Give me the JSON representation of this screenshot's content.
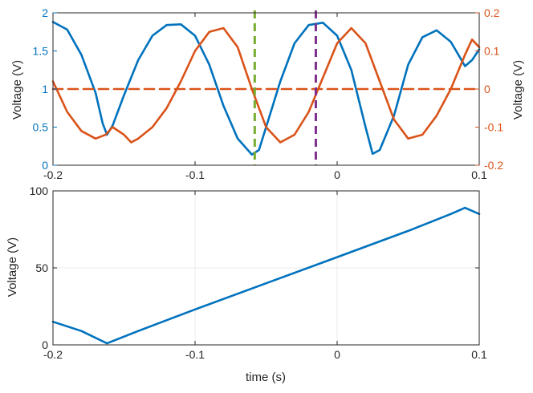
{
  "colors": {
    "blue": "#0072BD",
    "orange": "#D95319",
    "green": "#77AC30",
    "purple": "#7E2F8E",
    "axis": "#262626",
    "grid": "#ebebeb"
  },
  "chart_data": [
    {
      "type": "line",
      "title": "",
      "xlabel": "",
      "ylabel": "Voltage (V)",
      "ylabel_right": "Voltage (V)",
      "xlim": [
        -0.2,
        0.1
      ],
      "ylim": [
        0,
        2
      ],
      "ylim_right": [
        -0.2,
        0.2
      ],
      "xticks": [
        -0.2,
        -0.1,
        0,
        0.1
      ],
      "xtick_labels": [
        "-0.2",
        "-0.1",
        "0",
        "0.1"
      ],
      "yticks": [
        0,
        0.5,
        1,
        1.5,
        2
      ],
      "ytick_labels": [
        "0",
        "0.5",
        "1",
        "1.5",
        "2"
      ],
      "yticks_right": [
        -0.2,
        -0.1,
        0,
        0.1,
        0.2
      ],
      "ytick_labels_right": [
        "-0.2",
        "-0.1",
        "0",
        "0.1",
        "0.2"
      ],
      "grid": false,
      "series": [
        {
          "axis": "left",
          "color": "#0072BD",
          "style": "solid",
          "x": [
            -0.2,
            -0.19,
            -0.18,
            -0.17,
            -0.165,
            -0.162,
            -0.158,
            -0.15,
            -0.14,
            -0.13,
            -0.12,
            -0.11,
            -0.1,
            -0.09,
            -0.08,
            -0.07,
            -0.06,
            -0.055,
            -0.05,
            -0.04,
            -0.03,
            -0.02,
            -0.01,
            0,
            0.01,
            0.02,
            0.025,
            0.03,
            0.04,
            0.05,
            0.06,
            0.07,
            0.08,
            0.085,
            0.09,
            0.095,
            0.1
          ],
          "y": [
            1.88,
            1.78,
            1.45,
            0.95,
            0.55,
            0.4,
            0.52,
            0.92,
            1.38,
            1.7,
            1.84,
            1.85,
            1.7,
            1.32,
            0.78,
            0.35,
            0.14,
            0.2,
            0.5,
            1.1,
            1.6,
            1.84,
            1.87,
            1.7,
            1.25,
            0.5,
            0.15,
            0.2,
            0.65,
            1.32,
            1.68,
            1.77,
            1.62,
            1.46,
            1.3,
            1.38,
            1.52
          ]
        },
        {
          "axis": "right",
          "color": "#D95319",
          "style": "solid",
          "x": [
            -0.2,
            -0.19,
            -0.18,
            -0.17,
            -0.163,
            -0.158,
            -0.15,
            -0.145,
            -0.14,
            -0.13,
            -0.12,
            -0.11,
            -0.1,
            -0.09,
            -0.08,
            -0.07,
            -0.06,
            -0.05,
            -0.04,
            -0.03,
            -0.02,
            -0.01,
            0,
            0.01,
            0.02,
            0.03,
            0.04,
            0.05,
            0.06,
            0.07,
            0.08,
            0.09,
            0.095,
            0.1
          ],
          "y": [
            0.02,
            -0.06,
            -0.11,
            -0.13,
            -0.12,
            -0.1,
            -0.12,
            -0.14,
            -0.13,
            -0.1,
            -0.05,
            0.02,
            0.1,
            0.15,
            0.16,
            0.11,
            0.0,
            -0.1,
            -0.14,
            -0.12,
            -0.06,
            0.03,
            0.12,
            0.16,
            0.12,
            0.02,
            -0.08,
            -0.13,
            -0.12,
            -0.07,
            0.0,
            0.09,
            0.13,
            0.11
          ]
        },
        {
          "axis": "right",
          "color": "#D95319",
          "style": "dashed",
          "x": [
            -0.2,
            0.1
          ],
          "y": [
            0,
            0
          ]
        }
      ],
      "vlines": [
        {
          "x": -0.058,
          "color": "#77AC30",
          "style": "dashed"
        },
        {
          "x": -0.015,
          "color": "#7E2F8E",
          "style": "dashed"
        }
      ]
    },
    {
      "type": "line",
      "title": "",
      "xlabel": "time (s)",
      "ylabel": "Voltage (V)",
      "xlim": [
        -0.2,
        0.1
      ],
      "ylim": [
        0,
        100
      ],
      "xticks": [
        -0.2,
        -0.1,
        0,
        0.1
      ],
      "xtick_labels": [
        "-0.2",
        "-0.1",
        "0",
        "0.1"
      ],
      "yticks": [
        0,
        50,
        100
      ],
      "ytick_labels": [
        "0",
        "50",
        "100"
      ],
      "grid": true,
      "series": [
        {
          "axis": "left",
          "color": "#0072BD",
          "style": "solid",
          "x": [
            -0.2,
            -0.18,
            -0.162,
            -0.14,
            -0.1,
            -0.05,
            0,
            0.05,
            0.08,
            0.09,
            0.1
          ],
          "y": [
            15,
            9,
            1,
            9,
            23,
            40,
            57,
            74,
            85,
            89,
            85
          ]
        }
      ]
    }
  ]
}
